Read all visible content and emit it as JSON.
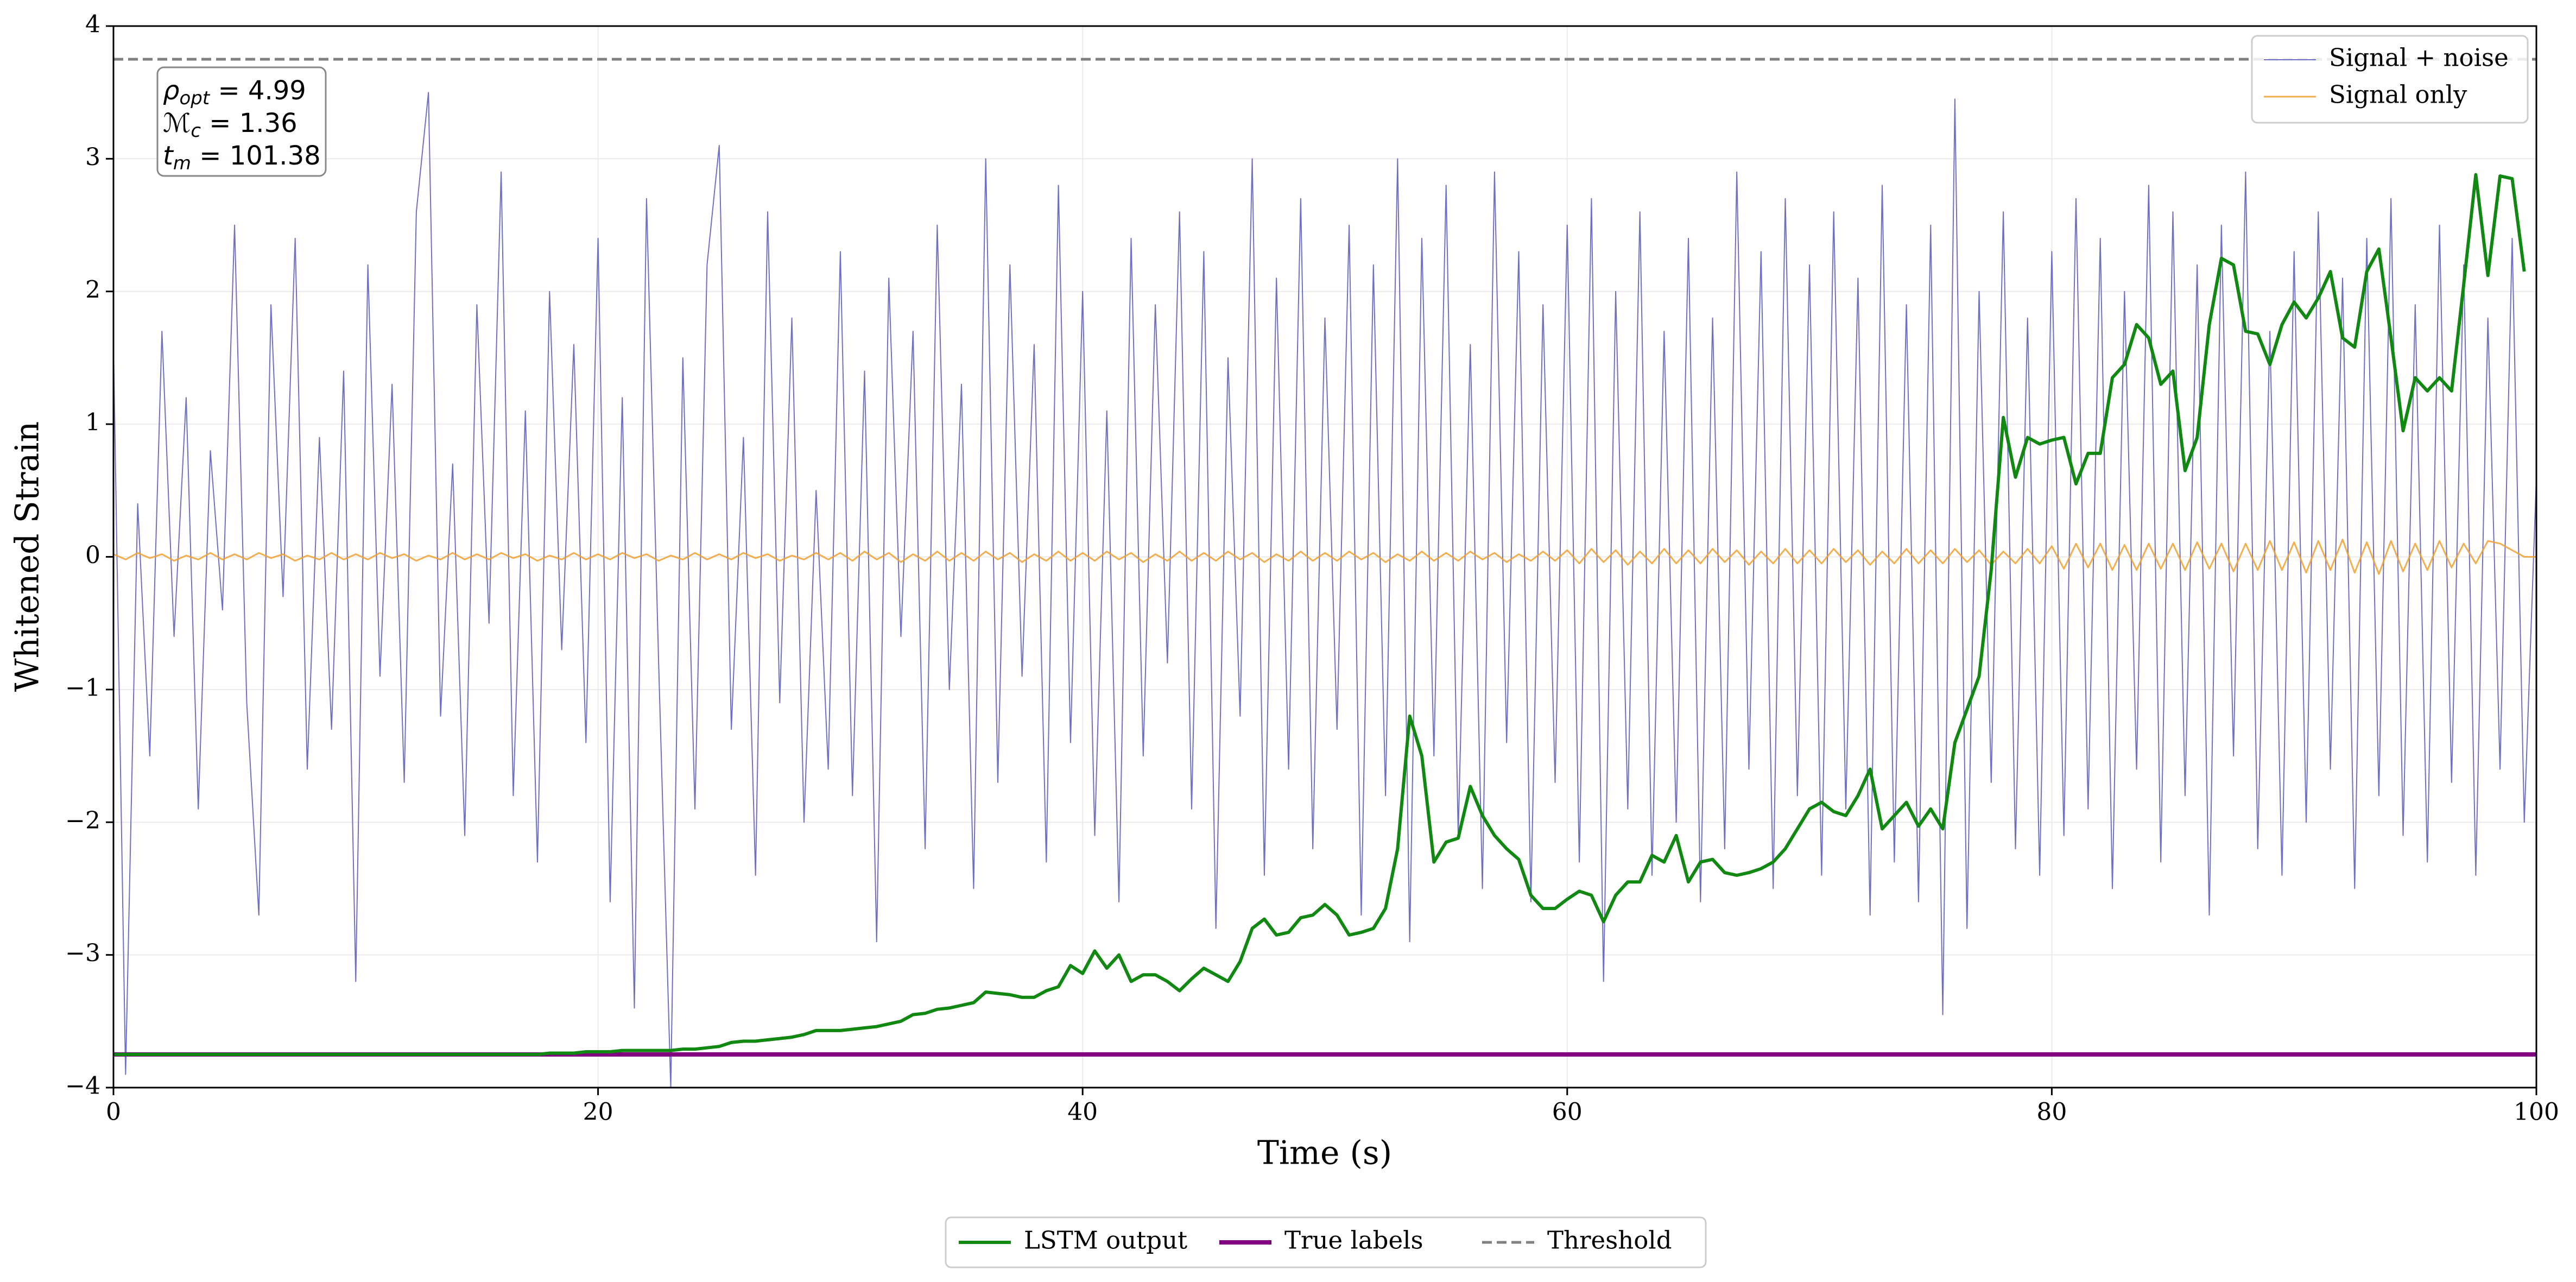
{
  "chart_data": {
    "type": "line",
    "xlabel": "Time (s)",
    "ylabel": "Whitened Strain",
    "xlim": [
      0,
      100
    ],
    "ylim": [
      -4,
      4
    ],
    "xticks": [
      0,
      20,
      40,
      60,
      80,
      100
    ],
    "yticks": [
      {
        "value": -4,
        "label": "−4"
      },
      {
        "value": -3,
        "label": "−3"
      },
      {
        "value": -2,
        "label": "−2"
      },
      {
        "value": -1,
        "label": "−1"
      },
      0,
      1,
      2,
      3,
      4
    ],
    "grid": true,
    "annotations": [
      {
        "symbol": "ρ",
        "subscript": "opt",
        "text": " = 4.99"
      },
      {
        "symbol": "ℳ",
        "subscript": "c",
        "text": " = 1.36"
      },
      {
        "symbol": "t",
        "subscript": "m",
        "text": " = 101.38"
      }
    ],
    "x": [
      0,
      0.5,
      1,
      1.5,
      2,
      2.5,
      3,
      3.5,
      4,
      4.5,
      5,
      5.5,
      6,
      6.5,
      7,
      7.5,
      8,
      8.5,
      9,
      9.5,
      10,
      10.5,
      11,
      11.5,
      12,
      12.5,
      13,
      13.5,
      14,
      14.5,
      15,
      15.5,
      16,
      16.5,
      17,
      17.5,
      18,
      18.5,
      19,
      19.5,
      20,
      20.5,
      21,
      21.5,
      22,
      22.5,
      23,
      23.5,
      24,
      24.5,
      25,
      25.5,
      26,
      26.5,
      27,
      27.5,
      28,
      28.5,
      29,
      29.5,
      30,
      30.5,
      31,
      31.5,
      32,
      32.5,
      33,
      33.5,
      34,
      34.5,
      35,
      35.5,
      36,
      36.5,
      37,
      37.5,
      38,
      38.5,
      39,
      39.5,
      40,
      40.5,
      41,
      41.5,
      42,
      42.5,
      43,
      43.5,
      44,
      44.5,
      45,
      45.5,
      46,
      46.5,
      47,
      47.5,
      48,
      48.5,
      49,
      49.5,
      50,
      50.5,
      51,
      51.5,
      52,
      52.5,
      53,
      53.5,
      54,
      54.5,
      55,
      55.5,
      56,
      56.5,
      57,
      57.5,
      58,
      58.5,
      59,
      59.5,
      60,
      60.5,
      61,
      61.5,
      62,
      62.5,
      63,
      63.5,
      64,
      64.5,
      65,
      65.5,
      66,
      66.5,
      67,
      67.5,
      68,
      68.5,
      69,
      69.5,
      70,
      70.5,
      71,
      71.5,
      72,
      72.5,
      73,
      73.5,
      74,
      74.5,
      75,
      75.5,
      76,
      76.5,
      77,
      77.5,
      78,
      78.5,
      79,
      79.5,
      80,
      80.5,
      81,
      81.5,
      82,
      82.5,
      83,
      83.5,
      84,
      84.5,
      85,
      85.5,
      86,
      86.5,
      87,
      87.5,
      88,
      88.5,
      89,
      89.5,
      90,
      90.5,
      91,
      91.5,
      92,
      92.5,
      93,
      93.5,
      94,
      94.5,
      95,
      95.5,
      96,
      96.5,
      97,
      97.5,
      98,
      98.5,
      99,
      99.5,
      100
    ],
    "series": [
      {
        "name": "Signal + noise",
        "color": "#5f5fbf",
        "linewidth": 2,
        "opacity": 0.9,
        "legend": "upper right",
        "values": [
          1.6,
          -3.9,
          0.4,
          -1.5,
          1.7,
          -0.6,
          1.2,
          -1.9,
          0.8,
          -0.4,
          2.5,
          -1.1,
          -2.7,
          1.9,
          -0.3,
          2.4,
          -1.6,
          0.9,
          -1.3,
          1.4,
          -3.2,
          2.2,
          -0.9,
          1.3,
          -1.7,
          2.6,
          3.5,
          -1.2,
          0.7,
          -2.1,
          1.9,
          -0.5,
          2.9,
          -1.8,
          1.1,
          -2.3,
          2.0,
          -0.7,
          1.6,
          -1.4,
          2.4,
          -2.6,
          1.2,
          -3.4,
          2.7,
          -0.8,
          -4.0,
          1.5,
          -1.9,
          2.2,
          3.1,
          -1.3,
          0.9,
          -2.4,
          2.6,
          -1.1,
          1.8,
          -2.0,
          0.5,
          -1.6,
          2.3,
          -1.8,
          1.4,
          -2.9,
          2.1,
          -0.6,
          1.7,
          -2.2,
          2.5,
          -1.0,
          1.3,
          -2.5,
          3.0,
          -1.7,
          2.2,
          -0.9,
          1.6,
          -2.3,
          2.8,
          -1.4,
          2.0,
          -2.1,
          1.1,
          -2.6,
          2.4,
          -1.5,
          1.9,
          -0.8,
          2.6,
          -1.9,
          2.3,
          -2.8,
          1.5,
          -1.2,
          3.0,
          -2.4,
          2.1,
          -1.6,
          2.7,
          -2.2,
          1.8,
          -1.3,
          2.5,
          -2.7,
          2.2,
          -1.8,
          3.0,
          -2.9,
          2.4,
          -1.5,
          2.8,
          -2.1,
          1.6,
          -2.5,
          2.9,
          -1.4,
          2.3,
          -2.6,
          1.9,
          -1.7,
          2.5,
          -2.3,
          2.7,
          -3.2,
          2.0,
          -1.9,
          2.6,
          -2.4,
          1.7,
          -2.0,
          2.4,
          -2.6,
          1.8,
          -2.2,
          2.9,
          -1.6,
          2.3,
          -2.5,
          2.7,
          -1.8,
          2.2,
          -2.4,
          2.6,
          -1.9,
          2.1,
          -2.7,
          2.8,
          -2.3,
          1.9,
          -2.6,
          2.5,
          -3.45,
          3.45,
          -2.8,
          2.0,
          -1.7,
          2.6,
          -2.2,
          1.8,
          -2.4,
          2.3,
          -2.1,
          2.7,
          -1.9,
          2.4,
          -2.5,
          2.0,
          -1.6,
          2.8,
          -2.3,
          2.6,
          -1.8,
          2.2,
          -2.7,
          2.5,
          -1.5,
          2.9,
          -2.2,
          1.7,
          -2.4,
          2.3,
          -2.0,
          2.6,
          -1.6,
          2.1,
          -2.5,
          2.4,
          -1.8,
          2.7,
          -2.1,
          1.9,
          -2.3,
          2.5,
          -1.7,
          2.2,
          -2.4,
          1.8,
          -1.6,
          2.4,
          -2.0,
          0.6
        ]
      },
      {
        "name": "Signal only",
        "color": "#f0a030",
        "linewidth": 3,
        "opacity": 0.85,
        "legend": "upper right",
        "values": [
          0.02,
          -0.02,
          0.03,
          -0.01,
          0.02,
          -0.03,
          0.01,
          -0.02,
          0.03,
          -0.02,
          0.02,
          -0.02,
          0.03,
          -0.01,
          0.02,
          -0.03,
          0.01,
          -0.02,
          0.03,
          -0.02,
          0.02,
          -0.02,
          0.03,
          -0.01,
          0.02,
          -0.03,
          0.01,
          -0.02,
          0.03,
          -0.02,
          0.02,
          -0.02,
          0.03,
          -0.01,
          0.02,
          -0.03,
          0.01,
          -0.02,
          0.03,
          -0.02,
          0.02,
          -0.02,
          0.03,
          -0.01,
          0.02,
          -0.03,
          0.01,
          -0.02,
          0.03,
          -0.02,
          0.02,
          -0.02,
          0.03,
          -0.01,
          0.02,
          -0.03,
          0.01,
          -0.02,
          0.03,
          -0.02,
          0.03,
          -0.03,
          0.04,
          -0.02,
          0.03,
          -0.04,
          0.02,
          -0.03,
          0.04,
          -0.03,
          0.03,
          -0.03,
          0.04,
          -0.02,
          0.03,
          -0.04,
          0.02,
          -0.03,
          0.04,
          -0.03,
          0.03,
          -0.03,
          0.04,
          -0.02,
          0.03,
          -0.04,
          0.02,
          -0.03,
          0.04,
          -0.03,
          0.03,
          -0.03,
          0.04,
          -0.02,
          0.03,
          -0.04,
          0.02,
          -0.03,
          0.04,
          -0.03,
          0.03,
          -0.03,
          0.04,
          -0.02,
          0.03,
          -0.04,
          0.02,
          -0.03,
          0.04,
          -0.03,
          0.03,
          -0.03,
          0.04,
          -0.02,
          0.03,
          -0.04,
          0.02,
          -0.03,
          0.04,
          -0.03,
          0.05,
          -0.05,
          0.06,
          -0.04,
          0.05,
          -0.06,
          0.04,
          -0.05,
          0.06,
          -0.05,
          0.05,
          -0.05,
          0.06,
          -0.04,
          0.05,
          -0.06,
          0.04,
          -0.05,
          0.06,
          -0.05,
          0.05,
          -0.05,
          0.06,
          -0.04,
          0.05,
          -0.06,
          0.04,
          -0.05,
          0.06,
          -0.05,
          0.05,
          -0.05,
          0.06,
          -0.04,
          0.05,
          -0.06,
          0.04,
          -0.05,
          0.06,
          -0.05,
          0.08,
          -0.09,
          0.1,
          -0.08,
          0.1,
          -0.1,
          0.09,
          -0.1,
          0.1,
          -0.09,
          0.1,
          -0.1,
          0.11,
          -0.09,
          0.1,
          -0.11,
          0.1,
          -0.1,
          0.12,
          -0.1,
          0.11,
          -0.12,
          0.12,
          -0.1,
          0.13,
          -0.12,
          0.11,
          -0.13,
          0.12,
          -0.11,
          0.1,
          -0.1,
          0.12,
          -0.08,
          0.1,
          -0.05,
          0.12,
          0.1,
          0.05,
          0.0,
          0.0
        ]
      },
      {
        "name": "LSTM output",
        "color": "#118811",
        "linewidth": 6,
        "opacity": 1,
        "legend": "lower center",
        "values": [
          -3.75,
          -3.75,
          -3.75,
          -3.75,
          -3.75,
          -3.75,
          -3.75,
          -3.75,
          -3.75,
          -3.75,
          -3.75,
          -3.75,
          -3.75,
          -3.75,
          -3.75,
          -3.75,
          -3.75,
          -3.75,
          -3.75,
          -3.75,
          -3.75,
          -3.75,
          -3.75,
          -3.75,
          -3.75,
          -3.75,
          -3.75,
          -3.75,
          -3.75,
          -3.75,
          -3.75,
          -3.75,
          -3.75,
          -3.75,
          -3.75,
          -3.75,
          -3.74,
          -3.74,
          -3.74,
          -3.73,
          -3.73,
          -3.73,
          -3.72,
          -3.72,
          -3.72,
          -3.72,
          -3.72,
          -3.71,
          -3.71,
          -3.7,
          -3.69,
          -3.66,
          -3.65,
          -3.65,
          -3.64,
          -3.63,
          -3.62,
          -3.6,
          -3.57,
          -3.57,
          -3.57,
          -3.56,
          -3.55,
          -3.54,
          -3.52,
          -3.5,
          -3.45,
          -3.44,
          -3.41,
          -3.4,
          -3.38,
          -3.36,
          -3.28,
          -3.29,
          -3.3,
          -3.32,
          -3.32,
          -3.27,
          -3.24,
          -3.08,
          -3.14,
          -2.97,
          -3.1,
          -3.0,
          -3.2,
          -3.15,
          -3.15,
          -3.2,
          -3.27,
          -3.18,
          -3.1,
          -3.15,
          -3.2,
          -3.05,
          -2.8,
          -2.73,
          -2.85,
          -2.83,
          -2.72,
          -2.7,
          -2.62,
          -2.7,
          -2.85,
          -2.83,
          -2.8,
          -2.65,
          -2.2,
          -1.2,
          -1.5,
          -2.3,
          -2.15,
          -2.12,
          -1.73,
          -1.95,
          -2.1,
          -2.2,
          -2.28,
          -2.55,
          -2.65,
          -2.65,
          -2.58,
          -2.52,
          -2.55,
          -2.75,
          -2.55,
          -2.45,
          -2.45,
          -2.25,
          -2.3,
          -2.1,
          -2.45,
          -2.3,
          -2.28,
          -2.38,
          -2.4,
          -2.38,
          -2.35,
          -2.3,
          -2.2,
          -2.05,
          -1.9,
          -1.85,
          -1.92,
          -1.95,
          -1.8,
          -1.6,
          -2.05,
          -1.95,
          -1.85,
          -2.03,
          -1.9,
          -2.05,
          -1.4,
          -1.15,
          -0.9,
          -0.1,
          1.05,
          0.6,
          0.9,
          0.85,
          0.88,
          0.9,
          0.55,
          0.78,
          0.78,
          1.35,
          1.45,
          1.75,
          1.65,
          1.3,
          1.4,
          0.65,
          0.9,
          1.75,
          2.25,
          2.2,
          1.7,
          1.68,
          1.45,
          1.75,
          1.92,
          1.8,
          1.95,
          2.15,
          1.65,
          1.58,
          2.15,
          2.32,
          1.65,
          0.95,
          1.35,
          1.25,
          1.35,
          1.25,
          2.05,
          2.88,
          2.12,
          2.87,
          2.85,
          2.15,
          null
        ]
      },
      {
        "name": "True labels",
        "color": "#800080",
        "linewidth": 8,
        "opacity": 1,
        "legend": "lower center",
        "x": [
          0,
          100
        ],
        "values": [
          -3.75,
          -3.75
        ]
      },
      {
        "name": "Threshold",
        "color": "#808080",
        "linewidth": 5,
        "opacity": 1,
        "linestyle": "dashed",
        "legend": "lower center",
        "x": [
          0,
          100
        ],
        "values": [
          3.75,
          3.75
        ]
      }
    ]
  }
}
